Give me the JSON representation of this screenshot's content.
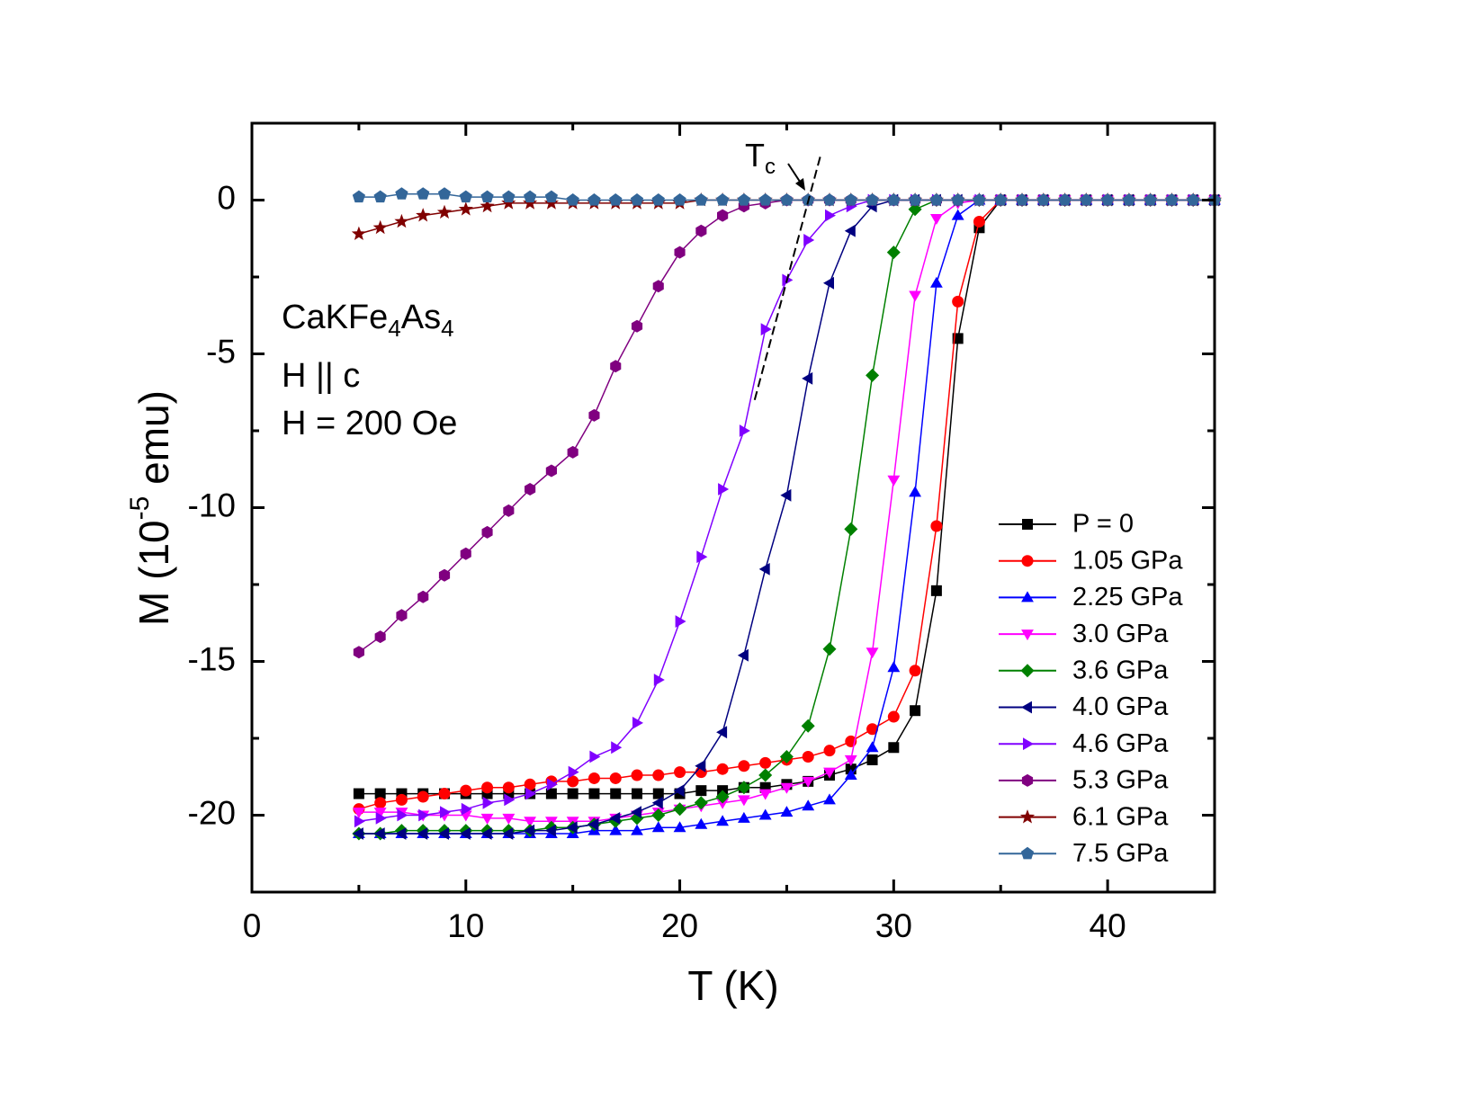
{
  "chart_data": {
    "type": "line",
    "x_label": "T (K)",
    "y_label": [
      "M (10",
      "-5",
      " emu)"
    ],
    "annotations": {
      "sample": [
        "CaKFe",
        "4",
        "As",
        "4"
      ],
      "field_dir": "H || c",
      "field": "H = 200 Oe",
      "tc_label": [
        "T",
        "c"
      ]
    },
    "tc_line": {
      "x": [
        23.5,
        26.6
      ],
      "y": [
        -6.5,
        1.5
      ]
    },
    "xlim": [
      0,
      45
    ],
    "xticks": [
      0,
      10,
      20,
      30,
      40
    ],
    "x_minor_ticks": [
      5,
      15,
      25,
      35
    ],
    "ylim": [
      -22.5,
      2.5
    ],
    "yticks": [
      0,
      -5,
      -10,
      -15,
      -20
    ],
    "y_minor_ticks": [
      -2.5,
      -7.5,
      -12.5,
      -17.5
    ],
    "legend": "bottom-right",
    "x": [
      5,
      6,
      7,
      8,
      9,
      10,
      11,
      12,
      13,
      14,
      15,
      16,
      17,
      18,
      19,
      20,
      21,
      22,
      23,
      24,
      25,
      26,
      27,
      28,
      29,
      30,
      31,
      32,
      33,
      34,
      35,
      36,
      37,
      38,
      39,
      40,
      41,
      42,
      43,
      44,
      45
    ],
    "series": [
      {
        "name": "P = 0",
        "color": "#000000",
        "marker": "square",
        "values": [
          -19.3,
          -19.3,
          -19.3,
          -19.3,
          -19.3,
          -19.3,
          -19.3,
          -19.3,
          -19.3,
          -19.3,
          -19.3,
          -19.3,
          -19.3,
          -19.3,
          -19.3,
          -19.3,
          -19.2,
          -19.2,
          -19.1,
          -19.1,
          -19.0,
          -18.9,
          -18.7,
          -18.5,
          -18.2,
          -17.8,
          -16.6,
          -12.7,
          -4.5,
          -0.9,
          0,
          0,
          0,
          0,
          0,
          0,
          0,
          0,
          0,
          0,
          0
        ]
      },
      {
        "name": "1.05 GPa",
        "color": "#ff0000",
        "marker": "circle",
        "values": [
          -19.8,
          -19.6,
          -19.5,
          -19.4,
          -19.3,
          -19.2,
          -19.1,
          -19.1,
          -19.0,
          -18.9,
          -18.9,
          -18.8,
          -18.8,
          -18.7,
          -18.7,
          -18.6,
          -18.6,
          -18.5,
          -18.4,
          -18.3,
          -18.2,
          -18.1,
          -17.9,
          -17.6,
          -17.2,
          -16.8,
          -15.3,
          -10.6,
          -3.3,
          -0.7,
          0,
          0,
          0,
          0,
          0,
          0,
          0,
          0,
          0,
          0,
          0
        ]
      },
      {
        "name": "2.25 GPa",
        "color": "#0000ff",
        "marker": "triangle-up",
        "values": [
          -20.6,
          -20.6,
          -20.6,
          -20.6,
          -20.6,
          -20.6,
          -20.6,
          -20.6,
          -20.6,
          -20.6,
          -20.6,
          -20.5,
          -20.5,
          -20.5,
          -20.4,
          -20.4,
          -20.3,
          -20.2,
          -20.1,
          -20.0,
          -19.9,
          -19.7,
          -19.5,
          -18.7,
          -17.8,
          -15.2,
          -9.5,
          -2.7,
          -0.5,
          0,
          0,
          0,
          0,
          0,
          0,
          0,
          0,
          0,
          0,
          0,
          0
        ]
      },
      {
        "name": "3.0 GPa",
        "color": "#ff00ff",
        "marker": "triangle-down",
        "values": [
          -19.9,
          -19.9,
          -19.9,
          -20.0,
          -20.0,
          -20.0,
          -20.1,
          -20.1,
          -20.2,
          -20.2,
          -20.2,
          -20.2,
          -20.1,
          -20.0,
          -19.9,
          -19.8,
          -19.7,
          -19.6,
          -19.5,
          -19.3,
          -19.1,
          -18.9,
          -18.6,
          -18.2,
          -14.7,
          -9.1,
          -3.1,
          -0.6,
          -0.1,
          0,
          0,
          0,
          0,
          0,
          0,
          0,
          0,
          0,
          0,
          0,
          0
        ]
      },
      {
        "name": "3.6 GPa",
        "color": "#008000",
        "marker": "diamond",
        "values": [
          -20.6,
          -20.6,
          -20.5,
          -20.5,
          -20.5,
          -20.5,
          -20.5,
          -20.5,
          -20.5,
          -20.4,
          -20.4,
          -20.3,
          -20.2,
          -20.1,
          -20.0,
          -19.8,
          -19.6,
          -19.4,
          -19.1,
          -18.7,
          -18.1,
          -17.1,
          -14.6,
          -10.7,
          -5.7,
          -1.7,
          -0.3,
          0,
          0,
          0,
          0,
          0,
          0,
          0,
          0,
          0,
          0,
          0,
          0,
          0,
          0
        ]
      },
      {
        "name": "4.0 GPa",
        "color": "#000080",
        "marker": "triangle-left",
        "values": [
          -20.6,
          -20.6,
          -20.6,
          -20.6,
          -20.6,
          -20.6,
          -20.6,
          -20.6,
          -20.5,
          -20.5,
          -20.4,
          -20.3,
          -20.1,
          -19.9,
          -19.6,
          -19.2,
          -18.4,
          -17.3,
          -14.8,
          -12.0,
          -9.6,
          -5.8,
          -2.7,
          -1.0,
          -0.2,
          0,
          0,
          0,
          0,
          0,
          0,
          0,
          0,
          0,
          0,
          0,
          0,
          0,
          0,
          0,
          0
        ]
      },
      {
        "name": "4.6 GPa",
        "color": "#8000ff",
        "marker": "triangle-right",
        "values": [
          -20.2,
          -20.1,
          -20.0,
          -20.0,
          -19.9,
          -19.8,
          -19.6,
          -19.5,
          -19.3,
          -19.0,
          -18.6,
          -18.1,
          -17.8,
          -17.0,
          -15.6,
          -13.7,
          -11.6,
          -9.4,
          -7.5,
          -4.2,
          -2.6,
          -1.3,
          -0.5,
          -0.2,
          0,
          0,
          0,
          0,
          0,
          0,
          0,
          0,
          0,
          0,
          0,
          0,
          0,
          0,
          0,
          0,
          0
        ]
      },
      {
        "name": "5.3 GPa",
        "color": "#800080",
        "marker": "hexagon",
        "values": [
          -14.7,
          -14.2,
          -13.5,
          -12.9,
          -12.2,
          -11.5,
          -10.8,
          -10.1,
          -9.4,
          -8.8,
          -8.2,
          -7.0,
          -5.4,
          -4.1,
          -2.8,
          -1.7,
          -1.0,
          -0.5,
          -0.2,
          -0.1,
          0,
          0,
          0,
          0,
          0,
          0,
          0,
          0,
          0,
          0,
          0,
          0,
          0,
          0,
          0,
          0,
          0,
          0,
          0,
          0,
          0
        ]
      },
      {
        "name": "6.1 GPa",
        "color": "#800000",
        "marker": "star",
        "values": [
          -1.1,
          -0.9,
          -0.7,
          -0.5,
          -0.4,
          -0.3,
          -0.2,
          -0.1,
          -0.1,
          -0.1,
          -0.1,
          -0.1,
          -0.1,
          -0.1,
          -0.1,
          -0.1,
          0,
          0,
          0,
          0,
          0,
          0,
          0,
          0,
          0,
          0,
          0,
          0,
          0,
          0,
          0,
          0,
          0,
          0,
          0,
          0,
          0,
          0,
          0,
          0,
          0
        ]
      },
      {
        "name": "7.5 GPa",
        "color": "#336699",
        "marker": "pentagon",
        "values": [
          0.1,
          0.1,
          0.2,
          0.2,
          0.2,
          0.1,
          0.1,
          0.1,
          0.1,
          0.1,
          0,
          0,
          0,
          0,
          0,
          0,
          0,
          0,
          0,
          0,
          0,
          0,
          0,
          0,
          0,
          0,
          0,
          0,
          0,
          0,
          0,
          0,
          0,
          0,
          0,
          0,
          0,
          0,
          0,
          0,
          0
        ]
      }
    ]
  }
}
